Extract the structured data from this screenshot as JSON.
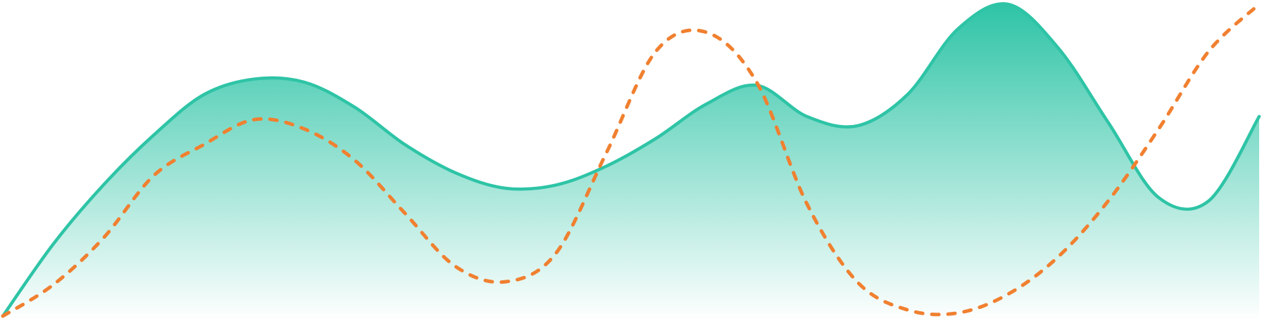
{
  "chart_data": {
    "type": "area",
    "x": [
      0,
      1,
      2,
      3,
      4,
      5,
      6,
      7,
      8,
      9,
      10,
      11,
      12,
      13,
      14,
      15,
      16,
      17,
      18,
      19,
      20,
      21,
      22,
      23,
      24,
      25
    ],
    "series": [
      {
        "kind": "area",
        "style": "solid",
        "color": "#2ec4a6",
        "fill_top": "#2ec4a6",
        "fill_bottom": "#ffffff",
        "values": [
          0.0,
          0.23,
          0.42,
          0.58,
          0.71,
          0.76,
          0.75,
          0.67,
          0.55,
          0.46,
          0.41,
          0.42,
          0.48,
          0.57,
          0.68,
          0.74,
          0.64,
          0.61,
          0.71,
          0.92,
          1.0,
          0.86,
          0.62,
          0.38,
          0.37,
          0.64
        ]
      },
      {
        "kind": "line",
        "style": "dashed",
        "color": "#f08030",
        "values": [
          0.0,
          0.1,
          0.25,
          0.45,
          0.55,
          0.63,
          0.6,
          0.5,
          0.33,
          0.16,
          0.11,
          0.2,
          0.52,
          0.85,
          0.91,
          0.75,
          0.36,
          0.11,
          0.02,
          0.01,
          0.07,
          0.19,
          0.37,
          0.6,
          0.85,
          1.0
        ]
      }
    ],
    "ylim": [
      0,
      1
    ],
    "grid": false,
    "axes": false,
    "legend": "none"
  }
}
